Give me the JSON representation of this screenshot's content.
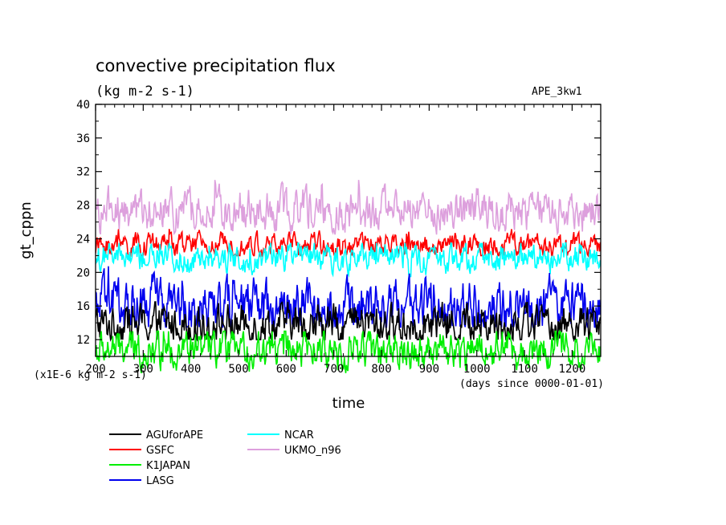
{
  "chart_data": {
    "type": "line",
    "title": "convective precipitation flux",
    "subtitle": "(kg m-2 s-1)",
    "experiment": "APE_3kw1",
    "xlabel": "time",
    "xunits": "(days since 0000-01-01)",
    "ylabel": "gt_cppn",
    "yunits": "(x1E-6 kg m-2 s-1)",
    "xlim": [
      200,
      1260
    ],
    "ylim": [
      10,
      40
    ],
    "x_ticks": [
      "200",
      "300",
      "400",
      "500",
      "600",
      "700",
      "800",
      "900",
      "1000",
      "1100",
      "1200"
    ],
    "y_ticks": [
      "12",
      "16",
      "20",
      "24",
      "28",
      "32",
      "36",
      "40"
    ],
    "grid": false,
    "legend_position": "bottom-left",
    "series": [
      {
        "name": "AGUforAPE",
        "color": "#000000",
        "mean": 13.8,
        "amplitude": 2.4,
        "range": [
          12,
          16.5
        ]
      },
      {
        "name": "GSFC",
        "color": "#ff0000",
        "mean": 23.2,
        "amplitude": 1.4,
        "range": [
          22,
          25.5
        ]
      },
      {
        "name": "K1JAPAN",
        "color": "#00ee00",
        "mean": 10.8,
        "amplitude": 2.2,
        "range": [
          8,
          13
        ]
      },
      {
        "name": "LASG",
        "color": "#0000ee",
        "mean": 16.0,
        "amplitude": 3.0,
        "range": [
          13.5,
          21
        ]
      },
      {
        "name": "NCAR",
        "color": "#00ffff",
        "mean": 21.7,
        "amplitude": 1.7,
        "range": [
          19.5,
          23.5
        ]
      },
      {
        "name": "UKMO_n96",
        "color": "#dda0dd",
        "mean": 27.3,
        "amplitude": 2.4,
        "range": [
          24.5,
          31
        ]
      }
    ]
  }
}
